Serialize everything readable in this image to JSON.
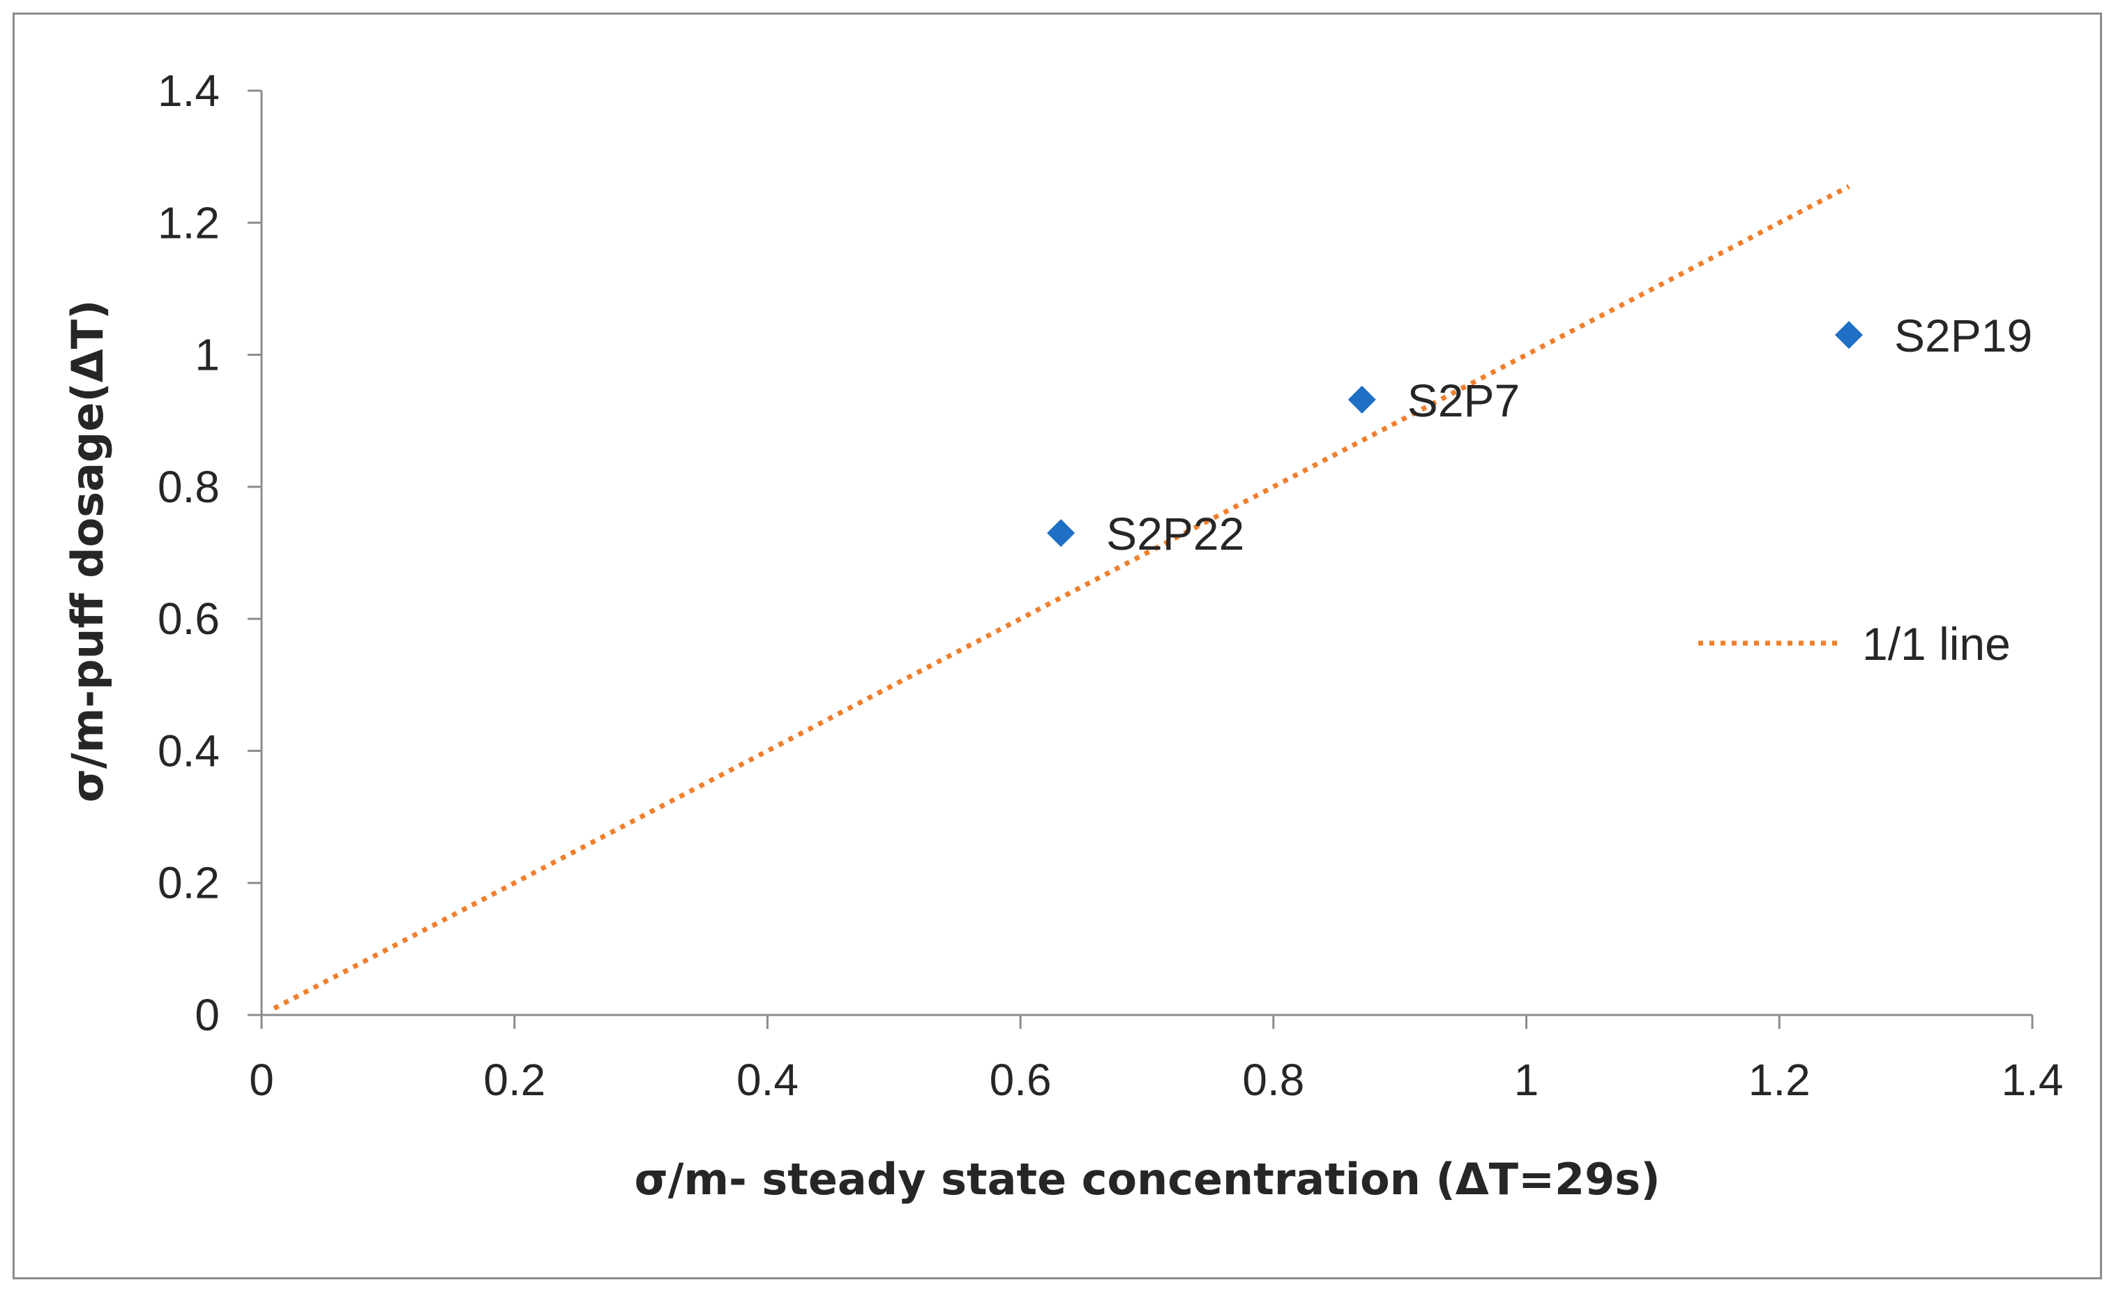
{
  "chart_data": {
    "type": "scatter",
    "title": "",
    "xlabel": "σ/m- steady state concentration (ΔT=29s)",
    "ylabel": "σ/m-puff dosage(ΔT)",
    "xlim": [
      0,
      1.4
    ],
    "ylim": [
      0,
      1.4
    ],
    "x_ticks": [
      0,
      0.2,
      0.4,
      0.6,
      0.8,
      1,
      1.2,
      1.4
    ],
    "x_tick_labels": [
      "0",
      "0.2",
      "0.4",
      "0.6",
      "0.8",
      "1",
      "1.2",
      "1.4"
    ],
    "y_ticks": [
      0,
      0.2,
      0.4,
      0.6,
      0.8,
      1,
      1.2,
      1.4
    ],
    "y_tick_labels": [
      "0",
      "0.2",
      "0.4",
      "0.6",
      "0.8",
      "1",
      "1.2",
      "1.4"
    ],
    "grid": false,
    "series": [
      {
        "name": "points",
        "marker": "diamond",
        "color": "#1f6fc5",
        "points": [
          {
            "label": "S2P22",
            "x": 0.632,
            "y": 0.73
          },
          {
            "label": "S2P7",
            "x": 0.87,
            "y": 0.932
          },
          {
            "label": "S2P19",
            "x": 1.255,
            "y": 1.03
          }
        ]
      },
      {
        "name": "1/1 line",
        "type": "line",
        "style": "dotted",
        "color": "#f07f2d",
        "x": [
          0.01,
          1.255
        ],
        "y": [
          0.01,
          1.255
        ]
      }
    ],
    "legend": {
      "entries": [
        "1/1 line"
      ],
      "placement": "right"
    }
  }
}
